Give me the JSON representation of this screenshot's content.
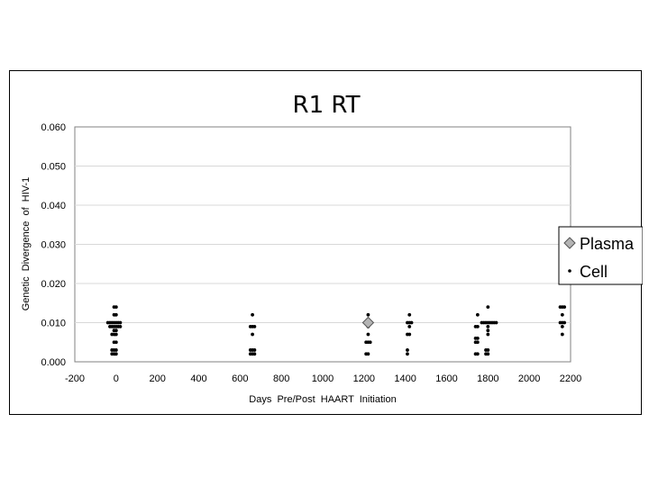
{
  "chart_data": {
    "type": "scatter",
    "title": "R1 RT",
    "xlabel": "Days  Pre/Post  HAART  Initiation",
    "ylabel": "Genetic  Divergence  of  HIV-1",
    "xlim": [
      -200,
      2200
    ],
    "ylim": [
      0,
      0.06
    ],
    "xticks": [
      "-200",
      "0",
      "200",
      "400",
      "600",
      "800",
      "1000",
      "1200",
      "1400",
      "1600",
      "1800",
      "2000",
      "2200"
    ],
    "yticks": [
      "0.000",
      "0.010",
      "0.020",
      "0.030",
      "0.040",
      "0.050",
      "0.060"
    ],
    "grid": "horizontal",
    "legend_position": "right",
    "series": [
      {
        "name": "Plasma",
        "marker": "diamond",
        "color": "#b4b4b4",
        "points": [
          [
            1220,
            0.01
          ]
        ]
      },
      {
        "name": "Cell",
        "marker": "dot",
        "color": "#000000",
        "points": [
          [
            -10,
            0.014
          ],
          [
            0,
            0.014
          ],
          [
            -10,
            0.012
          ],
          [
            0,
            0.012
          ],
          [
            -40,
            0.01
          ],
          [
            -30,
            0.01
          ],
          [
            -20,
            0.01
          ],
          [
            -10,
            0.01
          ],
          [
            0,
            0.01
          ],
          [
            10,
            0.01
          ],
          [
            20,
            0.01
          ],
          [
            -30,
            0.009
          ],
          [
            -20,
            0.009
          ],
          [
            -10,
            0.009
          ],
          [
            0,
            0.009
          ],
          [
            10,
            0.009
          ],
          [
            20,
            0.009
          ],
          [
            -10,
            0.008
          ],
          [
            0,
            0.008
          ],
          [
            -20,
            0.007
          ],
          [
            -10,
            0.007
          ],
          [
            0,
            0.007
          ],
          [
            -10,
            0.005
          ],
          [
            0,
            0.005
          ],
          [
            -20,
            0.003
          ],
          [
            -10,
            0.003
          ],
          [
            0,
            0.003
          ],
          [
            -20,
            0.002
          ],
          [
            -10,
            0.002
          ],
          [
            0,
            0.002
          ],
          [
            660,
            0.012
          ],
          [
            650,
            0.009
          ],
          [
            660,
            0.009
          ],
          [
            670,
            0.009
          ],
          [
            660,
            0.007
          ],
          [
            650,
            0.003
          ],
          [
            660,
            0.003
          ],
          [
            670,
            0.003
          ],
          [
            650,
            0.002
          ],
          [
            660,
            0.002
          ],
          [
            670,
            0.002
          ],
          [
            1220,
            0.012
          ],
          [
            1210,
            0.01
          ],
          [
            1230,
            0.01
          ],
          [
            1220,
            0.009
          ],
          [
            1220,
            0.007
          ],
          [
            1210,
            0.005
          ],
          [
            1220,
            0.005
          ],
          [
            1230,
            0.005
          ],
          [
            1210,
            0.002
          ],
          [
            1220,
            0.002
          ],
          [
            1420,
            0.012
          ],
          [
            1410,
            0.01
          ],
          [
            1420,
            0.01
          ],
          [
            1430,
            0.01
          ],
          [
            1420,
            0.009
          ],
          [
            1410,
            0.007
          ],
          [
            1420,
            0.007
          ],
          [
            1410,
            0.003
          ],
          [
            1410,
            0.002
          ],
          [
            1750,
            0.012
          ],
          [
            1740,
            0.009
          ],
          [
            1750,
            0.009
          ],
          [
            1740,
            0.006
          ],
          [
            1750,
            0.006
          ],
          [
            1740,
            0.005
          ],
          [
            1750,
            0.005
          ],
          [
            1740,
            0.002
          ],
          [
            1750,
            0.002
          ],
          [
            1800,
            0.014
          ],
          [
            1770,
            0.01
          ],
          [
            1780,
            0.01
          ],
          [
            1790,
            0.01
          ],
          [
            1800,
            0.01
          ],
          [
            1810,
            0.01
          ],
          [
            1820,
            0.01
          ],
          [
            1830,
            0.01
          ],
          [
            1840,
            0.01
          ],
          [
            1800,
            0.009
          ],
          [
            1800,
            0.008
          ],
          [
            1800,
            0.007
          ],
          [
            1790,
            0.003
          ],
          [
            1800,
            0.003
          ],
          [
            1790,
            0.002
          ],
          [
            1800,
            0.002
          ],
          [
            2150,
            0.014
          ],
          [
            2160,
            0.014
          ],
          [
            2170,
            0.014
          ],
          [
            2160,
            0.012
          ],
          [
            2150,
            0.01
          ],
          [
            2160,
            0.01
          ],
          [
            2170,
            0.01
          ],
          [
            2160,
            0.009
          ],
          [
            2160,
            0.007
          ]
        ]
      }
    ]
  }
}
